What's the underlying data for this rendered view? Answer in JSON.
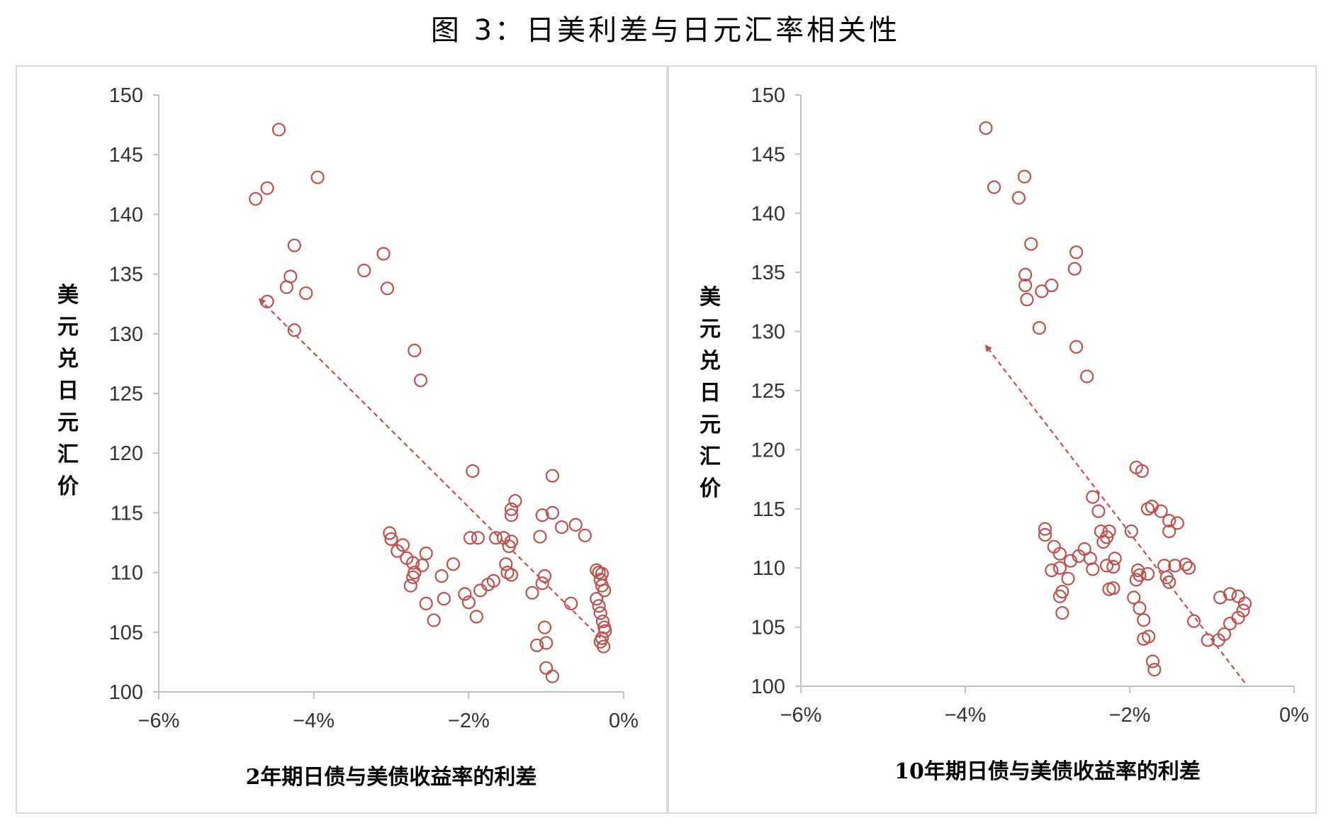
{
  "title": "图 3：日美利差与日元汇率相关性",
  "chart_data": [
    {
      "type": "scatter",
      "xlabel": "2年期日债与美债收益率的利差",
      "ylabel": "美元兑日元汇价",
      "xlim": [
        -6,
        0
      ],
      "ylim": [
        100,
        150
      ],
      "x_ticks": [
        "−6%",
        "−4%",
        "−2%",
        "0%"
      ],
      "y_ticks": [
        "100",
        "105",
        "110",
        "115",
        "120",
        "125",
        "130",
        "135",
        "140",
        "145",
        "150"
      ],
      "grid": false,
      "marker_color": "#c0504d",
      "trend_arrow": {
        "from": [
          -0.3,
          104.5
        ],
        "to": [
          -4.7,
          132.9
        ]
      },
      "points": [
        [
          -4.45,
          147.1
        ],
        [
          -3.95,
          143.1
        ],
        [
          -4.6,
          142.2
        ],
        [
          -4.75,
          141.3
        ],
        [
          -4.25,
          137.4
        ],
        [
          -3.1,
          136.7
        ],
        [
          -3.35,
          135.3
        ],
        [
          -4.3,
          134.8
        ],
        [
          -4.35,
          133.9
        ],
        [
          -3.05,
          133.8
        ],
        [
          -4.1,
          133.4
        ],
        [
          -4.6,
          132.7
        ],
        [
          -4.25,
          130.3
        ],
        [
          -2.7,
          128.6
        ],
        [
          -2.62,
          126.1
        ],
        [
          -1.95,
          118.5
        ],
        [
          -0.92,
          118.1
        ],
        [
          -1.4,
          116.0
        ],
        [
          -1.45,
          115.3
        ],
        [
          -1.45,
          114.8
        ],
        [
          -1.05,
          114.8
        ],
        [
          -0.92,
          115.0
        ],
        [
          -0.8,
          113.8
        ],
        [
          -0.62,
          114.0
        ],
        [
          -0.5,
          113.1
        ],
        [
          -3.02,
          113.3
        ],
        [
          -3.0,
          112.8
        ],
        [
          -2.85,
          112.3
        ],
        [
          -2.92,
          111.8
        ],
        [
          -2.8,
          111.2
        ],
        [
          -2.55,
          111.6
        ],
        [
          -2.6,
          110.6
        ],
        [
          -2.72,
          110.8
        ],
        [
          -2.7,
          110.0
        ],
        [
          -2.72,
          109.6
        ],
        [
          -2.35,
          109.7
        ],
        [
          -2.75,
          108.9
        ],
        [
          -1.98,
          112.9
        ],
        [
          -1.88,
          112.9
        ],
        [
          -1.65,
          112.9
        ],
        [
          -1.55,
          112.9
        ],
        [
          -1.45,
          112.6
        ],
        [
          -1.48,
          112.2
        ],
        [
          -1.08,
          113.0
        ],
        [
          -2.2,
          110.7
        ],
        [
          -1.52,
          110.7
        ],
        [
          -1.5,
          110.0
        ],
        [
          -1.45,
          109.8
        ],
        [
          -1.02,
          109.7
        ],
        [
          -1.05,
          109.1
        ],
        [
          -1.68,
          109.3
        ],
        [
          -1.75,
          109.0
        ],
        [
          -1.85,
          108.5
        ],
        [
          -2.05,
          108.2
        ],
        [
          -2.0,
          107.5
        ],
        [
          -1.9,
          106.3
        ],
        [
          -2.32,
          107.8
        ],
        [
          -2.55,
          107.4
        ],
        [
          -2.45,
          106.0
        ],
        [
          -1.18,
          108.3
        ],
        [
          -0.68,
          107.4
        ],
        [
          -1.02,
          105.4
        ],
        [
          -1.0,
          104.1
        ],
        [
          -1.12,
          103.9
        ],
        [
          -1.0,
          102.0
        ],
        [
          -0.92,
          101.3
        ],
        [
          -0.35,
          110.2
        ],
        [
          -0.32,
          110.0
        ],
        [
          -0.28,
          109.9
        ],
        [
          -0.3,
          109.4
        ],
        [
          -0.28,
          108.9
        ],
        [
          -0.25,
          108.5
        ],
        [
          -0.35,
          107.8
        ],
        [
          -0.32,
          107.2
        ],
        [
          -0.3,
          106.6
        ],
        [
          -0.27,
          105.9
        ],
        [
          -0.25,
          105.4
        ],
        [
          -0.24,
          105.1
        ],
        [
          -0.28,
          104.5
        ],
        [
          -0.3,
          104.2
        ],
        [
          -0.26,
          103.8
        ]
      ]
    },
    {
      "type": "scatter",
      "xlabel": "10年期日债与美债收益率的利差",
      "ylabel": "美元兑日元汇价",
      "xlim": [
        -6,
        0
      ],
      "ylim": [
        100,
        150
      ],
      "x_ticks": [
        "−6%",
        "−4%",
        "−2%",
        "0%"
      ],
      "y_ticks": [
        "100",
        "105",
        "110",
        "115",
        "120",
        "125",
        "130",
        "135",
        "140",
        "145",
        "150"
      ],
      "grid": false,
      "marker_color": "#c0504d",
      "trend_arrow": {
        "from": [
          -0.6,
          100.3
        ],
        "to": [
          -3.75,
          128.8
        ]
      },
      "points": [
        [
          -3.75,
          147.2
        ],
        [
          -3.28,
          143.1
        ],
        [
          -3.65,
          142.2
        ],
        [
          -3.35,
          141.3
        ],
        [
          -3.2,
          137.4
        ],
        [
          -2.65,
          136.7
        ],
        [
          -2.67,
          135.3
        ],
        [
          -3.27,
          134.8
        ],
        [
          -3.27,
          133.9
        ],
        [
          -2.95,
          133.9
        ],
        [
          -3.07,
          133.4
        ],
        [
          -3.25,
          132.7
        ],
        [
          -3.1,
          130.3
        ],
        [
          -2.65,
          128.7
        ],
        [
          -2.52,
          126.2
        ],
        [
          -1.92,
          118.5
        ],
        [
          -1.85,
          118.2
        ],
        [
          -2.45,
          116.0
        ],
        [
          -2.38,
          114.8
        ],
        [
          -1.73,
          115.2
        ],
        [
          -1.78,
          115.0
        ],
        [
          -1.62,
          114.8
        ],
        [
          -1.52,
          114.0
        ],
        [
          -1.42,
          113.8
        ],
        [
          -1.52,
          113.1
        ],
        [
          -1.98,
          113.1
        ],
        [
          -3.03,
          113.3
        ],
        [
          -3.03,
          112.8
        ],
        [
          -2.35,
          113.1
        ],
        [
          -2.25,
          113.1
        ],
        [
          -2.28,
          112.6
        ],
        [
          -2.32,
          112.2
        ],
        [
          -2.55,
          111.6
        ],
        [
          -2.92,
          111.8
        ],
        [
          -2.85,
          111.2
        ],
        [
          -2.62,
          111.0
        ],
        [
          -2.48,
          110.8
        ],
        [
          -2.72,
          110.6
        ],
        [
          -2.85,
          110.0
        ],
        [
          -2.95,
          109.8
        ],
        [
          -2.18,
          110.8
        ],
        [
          -2.2,
          110.1
        ],
        [
          -2.28,
          110.2
        ],
        [
          -2.45,
          109.9
        ],
        [
          -1.9,
          109.8
        ],
        [
          -1.88,
          109.4
        ],
        [
          -1.92,
          109.0
        ],
        [
          -1.78,
          109.5
        ],
        [
          -1.58,
          110.2
        ],
        [
          -1.45,
          110.2
        ],
        [
          -1.32,
          110.3
        ],
        [
          -1.28,
          110.0
        ],
        [
          -1.55,
          109.2
        ],
        [
          -1.52,
          108.8
        ],
        [
          -2.75,
          109.1
        ],
        [
          -2.82,
          108.0
        ],
        [
          -2.85,
          107.6
        ],
        [
          -2.25,
          108.2
        ],
        [
          -2.2,
          108.3
        ],
        [
          -1.95,
          107.5
        ],
        [
          -1.88,
          106.6
        ],
        [
          -1.83,
          105.6
        ],
        [
          -2.82,
          106.2
        ],
        [
          -1.77,
          104.2
        ],
        [
          -1.83,
          104.0
        ],
        [
          -1.72,
          102.1
        ],
        [
          -1.7,
          101.4
        ],
        [
          -1.22,
          105.5
        ],
        [
          -1.05,
          103.9
        ],
        [
          -0.92,
          103.9
        ],
        [
          -0.85,
          104.4
        ],
        [
          -0.78,
          105.3
        ],
        [
          -0.68,
          105.8
        ],
        [
          -0.62,
          106.4
        ],
        [
          -0.6,
          107.0
        ],
        [
          -0.68,
          107.6
        ],
        [
          -0.78,
          107.8
        ],
        [
          -0.9,
          107.5
        ]
      ]
    }
  ]
}
